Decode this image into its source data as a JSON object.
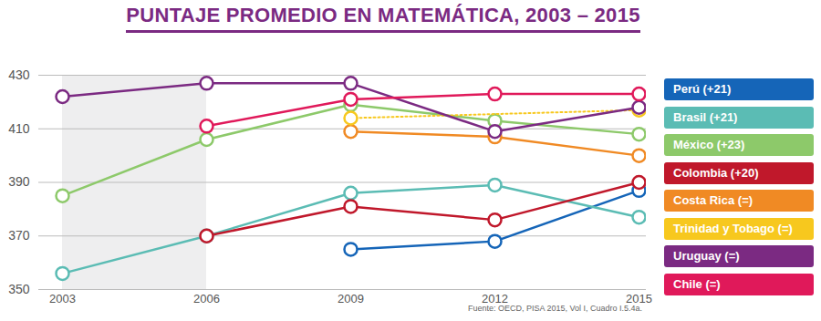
{
  "chart_data": {
    "type": "line",
    "title": "PUNTAJE PROMEDIO EN MATEMÁTICA, 2003 – 2015",
    "source": "Fuente: OECD, PISA 2015, Vol I, Cuadro I.5.4a.",
    "x": [
      2003,
      2006,
      2009,
      2012,
      2015
    ],
    "xlim": [
      2003,
      2015
    ],
    "xticks": [
      2003,
      2006,
      2009,
      2012,
      2015
    ],
    "ylim": [
      350,
      430
    ],
    "yticks": [
      350,
      370,
      390,
      410,
      430
    ],
    "grid": true,
    "legend": "right",
    "marker": "circle",
    "series": [
      {
        "name": "Perú (+21)",
        "color": "#1565b8",
        "values": [
          null,
          null,
          365,
          368,
          387
        ]
      },
      {
        "name": "Brasil (+21)",
        "color": "#5bbcb4",
        "values": [
          356,
          370,
          386,
          389,
          377
        ]
      },
      {
        "name": "México (+23)",
        "color": "#8dc96a",
        "values": [
          385,
          406,
          419,
          413,
          408
        ]
      },
      {
        "name": "Colombia (+20)",
        "color": "#c0182b",
        "values": [
          null,
          370,
          381,
          376,
          390
        ]
      },
      {
        "name": "Costa Rica (=)",
        "color": "#f08a24",
        "values": [
          null,
          null,
          409,
          407,
          400
        ]
      },
      {
        "name": "Trinidad y Tobago (=)",
        "color": "#f7c81e",
        "line_style": "dotted",
        "values": [
          null,
          null,
          414,
          null,
          417
        ]
      },
      {
        "name": "Uruguay (=)",
        "color": "#7b2a82",
        "values": [
          422,
          427,
          427,
          409,
          418
        ]
      },
      {
        "name": "Chile (=)",
        "color": "#e0195a",
        "values": [
          null,
          411,
          421,
          423,
          423
        ]
      }
    ]
  }
}
